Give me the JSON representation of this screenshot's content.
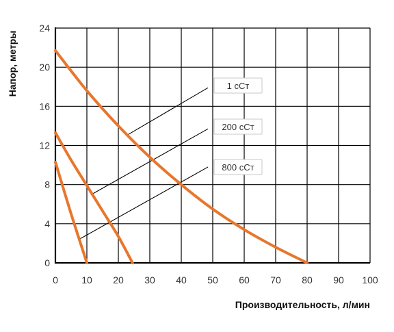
{
  "chart_data": {
    "type": "line",
    "title": "",
    "xlabel": "Производительность, л/мин",
    "ylabel": "Напор, метры",
    "xlim": [
      0,
      100
    ],
    "ylim": [
      0,
      24
    ],
    "xticks": [
      0,
      10,
      20,
      30,
      40,
      50,
      60,
      70,
      80,
      90,
      100
    ],
    "yticks": [
      0,
      4,
      8,
      12,
      16,
      20,
      24
    ],
    "grid": true,
    "colors": {
      "curve": "#e8762c",
      "grid": "#000000",
      "leader": "#000000"
    },
    "series": [
      {
        "name": "1 сСт",
        "x": [
          0,
          10,
          20,
          30,
          40,
          50,
          60,
          70,
          80
        ],
        "y": [
          21.7,
          17.6,
          14.0,
          10.8,
          8.0,
          5.5,
          3.4,
          1.6,
          0
        ]
      },
      {
        "name": "200 сСт",
        "x": [
          0,
          5,
          10,
          15,
          20,
          24.5
        ],
        "y": [
          13.3,
          10.5,
          7.9,
          5.3,
          2.7,
          0
        ]
      },
      {
        "name": "800 сСт",
        "x": [
          0,
          5,
          10
        ],
        "y": [
          10.3,
          5.0,
          0
        ]
      }
    ],
    "annotations": [
      {
        "label": "1 сСт",
        "from": [
          22.5,
          13.0
        ],
        "to": [
          48.5,
          17.9
        ]
      },
      {
        "label": "200 сСт",
        "from": [
          11.5,
          7.0
        ],
        "to": [
          48.5,
          13.7
        ]
      },
      {
        "label": "800 сСт",
        "from": [
          7.5,
          2.4
        ],
        "to": [
          48.5,
          9.8
        ]
      }
    ]
  }
}
